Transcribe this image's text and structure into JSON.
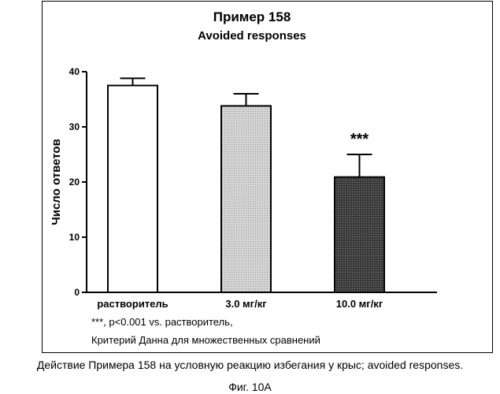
{
  "chart_data": {
    "type": "bar",
    "title": "Пример 158",
    "subtitle": "Avoided responses",
    "xlabel": "",
    "ylabel": "Число ответов",
    "ylim": [
      0,
      40
    ],
    "yticks": [
      0,
      10,
      20,
      30,
      40
    ],
    "categories": [
      "растворитель",
      "3.0 мг/кг",
      "10.0 мг/кг"
    ],
    "values": [
      37.5,
      33.8,
      20.9
    ],
    "errors": [
      1.3,
      2.2,
      4.1
    ],
    "fills": [
      "#ffffff",
      "#c8c8c8",
      "#444444"
    ],
    "annotations": [
      "",
      "",
      "***"
    ],
    "grid": false
  },
  "footnotes": {
    "line1": "***, p<0.001 vs. растворитель,",
    "line2": "Критерий Данна для множественных сравнений"
  },
  "caption": {
    "main": "Действие Примера 158 на условную реакцию избегания у крыс; avoided responses.",
    "figure_label": "Фиг. 10А"
  }
}
